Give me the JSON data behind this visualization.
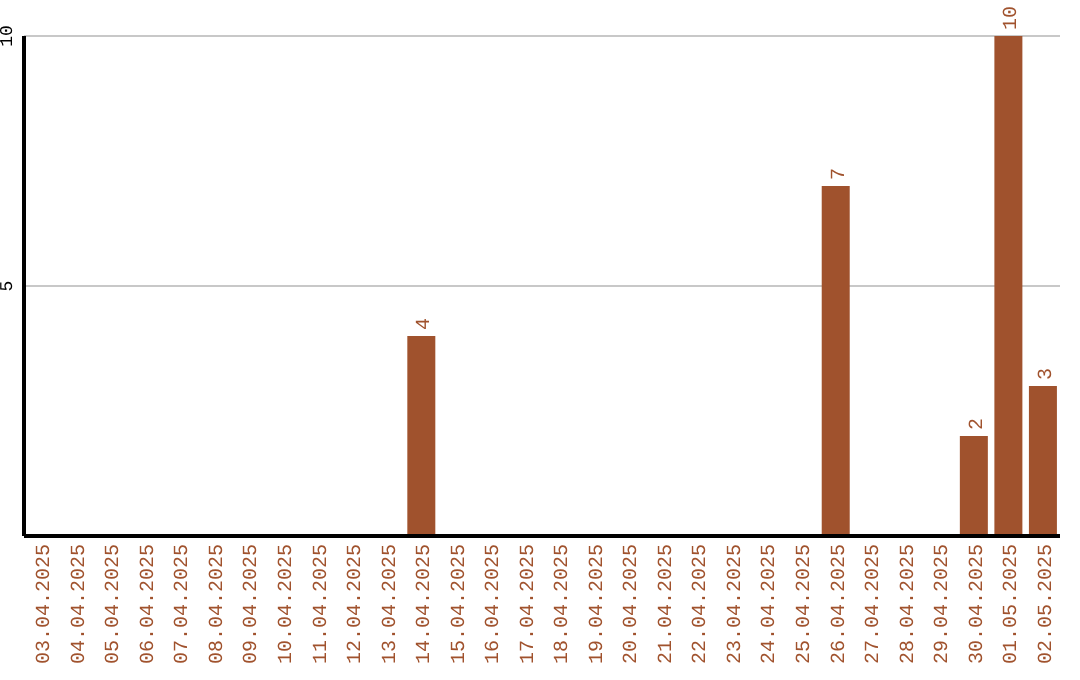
{
  "chart_data": {
    "type": "bar",
    "categories": [
      "03.04.2025",
      "04.04.2025",
      "05.04.2025",
      "06.04.2025",
      "07.04.2025",
      "08.04.2025",
      "09.04.2025",
      "10.04.2025",
      "11.04.2025",
      "12.04.2025",
      "13.04.2025",
      "14.04.2025",
      "15.04.2025",
      "16.04.2025",
      "17.04.2025",
      "18.04.2025",
      "19.04.2025",
      "20.04.2025",
      "21.04.2025",
      "22.04.2025",
      "23.04.2025",
      "24.04.2025",
      "25.04.2025",
      "26.04.2025",
      "27.04.2025",
      "28.04.2025",
      "29.04.2025",
      "30.04.2025",
      "01.05.2025",
      "02.05.2025"
    ],
    "values": [
      null,
      null,
      null,
      null,
      null,
      null,
      null,
      null,
      null,
      null,
      null,
      4,
      null,
      null,
      null,
      null,
      null,
      null,
      null,
      null,
      null,
      null,
      null,
      7,
      null,
      null,
      null,
      2,
      10,
      3
    ],
    "color": "#a0522d",
    "ylim": [
      0,
      10
    ],
    "yticks": [
      5,
      10
    ],
    "grid": "y",
    "data_labels": true
  }
}
